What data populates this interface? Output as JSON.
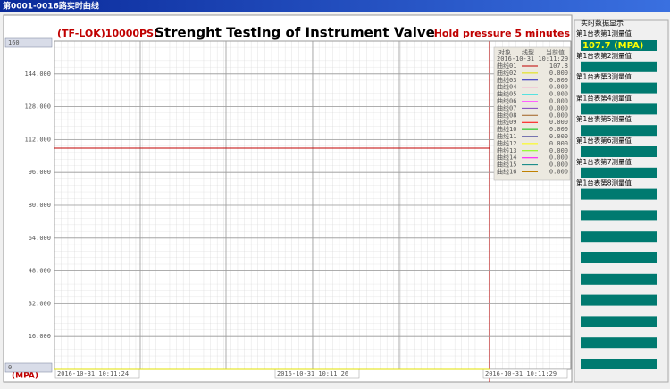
{
  "window_title": "第0001-0016路实时曲线",
  "chart": {
    "title": "Strenght Testing of Instrument Valve",
    "left_note": "(TF-LOK)10000PSI",
    "right_note": "Hold pressure 5 minutes",
    "y_unit": "(MPA)",
    "ylim": [
      0,
      160
    ],
    "yticks": [
      0,
      {
        "value": 16,
        "label": "16.000"
      },
      {
        "value": 32,
        "label": "32.000"
      },
      {
        "value": 48,
        "label": "48.000"
      },
      {
        "value": 64,
        "label": "64.000"
      },
      {
        "value": 80,
        "label": "80.000"
      },
      {
        "value": 96,
        "label": "96.000"
      },
      {
        "value": 112,
        "label": "112.000"
      },
      {
        "value": 128,
        "label": "128.000"
      },
      {
        "value": 144,
        "label": "144.000"
      },
      160
    ],
    "xticks": [
      "2016-10-31 10:11:24",
      "2016-10-31 10:11:26",
      "2016-10-31 10:11:29"
    ]
  },
  "legend": {
    "headers": [
      "对象",
      "线型",
      "当前值"
    ],
    "timestamp": "2016-10-31 10:11:29",
    "rows": [
      {
        "name": "曲线01",
        "color": "#c00000",
        "value": 107.8
      },
      {
        "name": "曲线02",
        "color": "#e0e000",
        "value": {
          "value": 0,
          "label": "0.000"
        }
      },
      {
        "name": "曲线03",
        "color": "#2020c0",
        "value": {
          "value": 0,
          "label": "0.000"
        }
      },
      {
        "name": "曲线04",
        "color": "#ff80c0",
        "value": {
          "value": 0,
          "label": "0.000"
        }
      },
      {
        "name": "曲线05",
        "color": "#40e0e0",
        "value": {
          "value": 0,
          "label": "0.000"
        }
      },
      {
        "name": "曲线06",
        "color": "#ff60ff",
        "value": {
          "value": 0,
          "label": "0.000"
        }
      },
      {
        "name": "曲线07",
        "color": "#8040c0",
        "value": {
          "value": 0,
          "label": "0.000"
        }
      },
      {
        "name": "曲线08",
        "color": "#a06020",
        "value": {
          "value": 0,
          "label": "0.000"
        }
      },
      {
        "name": "曲线09",
        "color": "#ff0000",
        "value": {
          "value": 0,
          "label": "0.000"
        }
      },
      {
        "name": "曲线10",
        "color": "#00c000",
        "value": {
          "value": 0,
          "label": "0.000"
        }
      },
      {
        "name": "曲线11",
        "color": "#000080",
        "value": {
          "value": 0,
          "label": "0.000"
        }
      },
      {
        "name": "曲线12",
        "color": "#ffff00",
        "value": {
          "value": 0,
          "label": "0.000"
        }
      },
      {
        "name": "曲线13",
        "color": "#80ff00",
        "value": {
          "value": 0,
          "label": "0.000"
        }
      },
      {
        "name": "曲线14",
        "color": "#ff00ff",
        "value": {
          "value": 0,
          "label": "0.000"
        }
      },
      {
        "name": "曲线15",
        "color": "#008080",
        "value": {
          "value": 0,
          "label": "0.000"
        }
      },
      {
        "name": "曲线16",
        "color": "#c08000",
        "value": {
          "value": 0,
          "label": "0.000"
        }
      }
    ]
  },
  "panel": {
    "title": "实时数据显示",
    "reading": "107.7 (MPA)",
    "labels": [
      "第1台表第1测量值",
      "第1台表第2测量值",
      "第1台表第3测量值",
      "第1台表第4测量值",
      "第1台表第5测量值",
      "第1台表第6测量值",
      "第1台表第7测量值",
      "第1台表第8测量值"
    ]
  }
}
